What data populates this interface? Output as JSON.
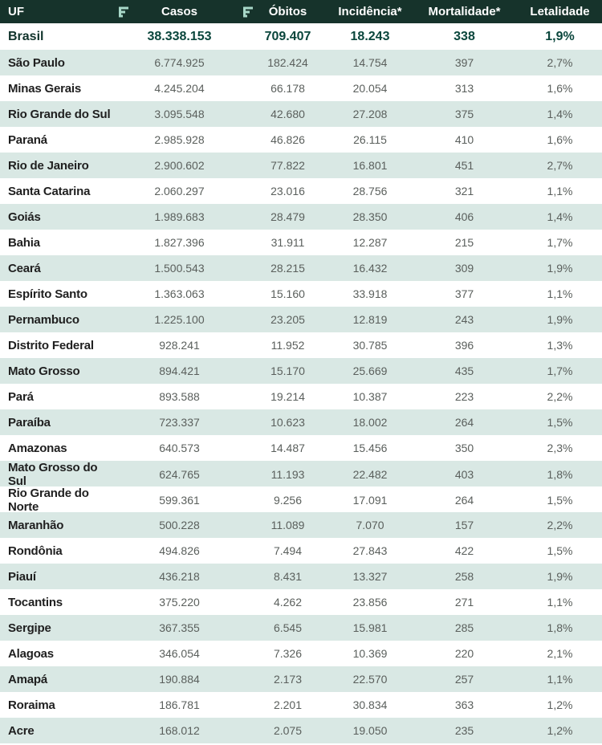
{
  "colors": {
    "header_background": "#16332b",
    "header_text": "#ffffff",
    "sort_icon": "#a8d8c8",
    "alternate_row_background": "#d9e8e4",
    "total_row_value_text": "#0a463c",
    "state_name_text": "#1f1f1f",
    "value_text": "#5a5f5c"
  },
  "chart_data": {
    "type": "table",
    "columns": [
      "UF",
      "Casos",
      "Óbitos",
      "Incidência*",
      "Mortalidade*",
      "Letalidade"
    ],
    "sorted_columns": [
      "Casos",
      "Óbitos"
    ],
    "total_row": [
      "Brasil",
      "38.338.153",
      "709.407",
      "18.243",
      "338",
      "1,9%"
    ],
    "rows": [
      [
        "São Paulo",
        "6.774.925",
        "182.424",
        "14.754",
        "397",
        "2,7%"
      ],
      [
        "Minas Gerais",
        "4.245.204",
        "66.178",
        "20.054",
        "313",
        "1,6%"
      ],
      [
        "Rio Grande do Sul",
        "3.095.548",
        "42.680",
        "27.208",
        "375",
        "1,4%"
      ],
      [
        "Paraná",
        "2.985.928",
        "46.826",
        "26.115",
        "410",
        "1,6%"
      ],
      [
        "Rio de Janeiro",
        "2.900.602",
        "77.822",
        "16.801",
        "451",
        "2,7%"
      ],
      [
        "Santa Catarina",
        "2.060.297",
        "23.016",
        "28.756",
        "321",
        "1,1%"
      ],
      [
        "Goiás",
        "1.989.683",
        "28.479",
        "28.350",
        "406",
        "1,4%"
      ],
      [
        "Bahia",
        "1.827.396",
        "31.911",
        "12.287",
        "215",
        "1,7%"
      ],
      [
        "Ceará",
        "1.500.543",
        "28.215",
        "16.432",
        "309",
        "1,9%"
      ],
      [
        "Espírito Santo",
        "1.363.063",
        "15.160",
        "33.918",
        "377",
        "1,1%"
      ],
      [
        "Pernambuco",
        "1.225.100",
        "23.205",
        "12.819",
        "243",
        "1,9%"
      ],
      [
        "Distrito Federal",
        "928.241",
        "11.952",
        "30.785",
        "396",
        "1,3%"
      ],
      [
        "Mato Grosso",
        "894.421",
        "15.170",
        "25.669",
        "435",
        "1,7%"
      ],
      [
        "Pará",
        "893.588",
        "19.214",
        "10.387",
        "223",
        "2,2%"
      ],
      [
        "Paraíba",
        "723.337",
        "10.623",
        "18.002",
        "264",
        "1,5%"
      ],
      [
        "Amazonas",
        "640.573",
        "14.487",
        "15.456",
        "350",
        "2,3%"
      ],
      [
        "Mato Grosso do Sul",
        "624.765",
        "11.193",
        "22.482",
        "403",
        "1,8%"
      ],
      [
        "Rio Grande do Norte",
        "599.361",
        "9.256",
        "17.091",
        "264",
        "1,5%"
      ],
      [
        "Maranhão",
        "500.228",
        "11.089",
        "7.070",
        "157",
        "2,2%"
      ],
      [
        "Rondônia",
        "494.826",
        "7.494",
        "27.843",
        "422",
        "1,5%"
      ],
      [
        "Piauí",
        "436.218",
        "8.431",
        "13.327",
        "258",
        "1,9%"
      ],
      [
        "Tocantins",
        "375.220",
        "4.262",
        "23.856",
        "271",
        "1,1%"
      ],
      [
        "Sergipe",
        "367.355",
        "6.545",
        "15.981",
        "285",
        "1,8%"
      ],
      [
        "Alagoas",
        "346.054",
        "7.326",
        "10.369",
        "220",
        "2,1%"
      ],
      [
        "Amapá",
        "190.884",
        "2.173",
        "22.570",
        "257",
        "1,1%"
      ],
      [
        "Roraima",
        "186.781",
        "2.201",
        "30.834",
        "363",
        "1,2%"
      ],
      [
        "Acre",
        "168.012",
        "2.075",
        "19.050",
        "235",
        "1,2%"
      ]
    ]
  }
}
